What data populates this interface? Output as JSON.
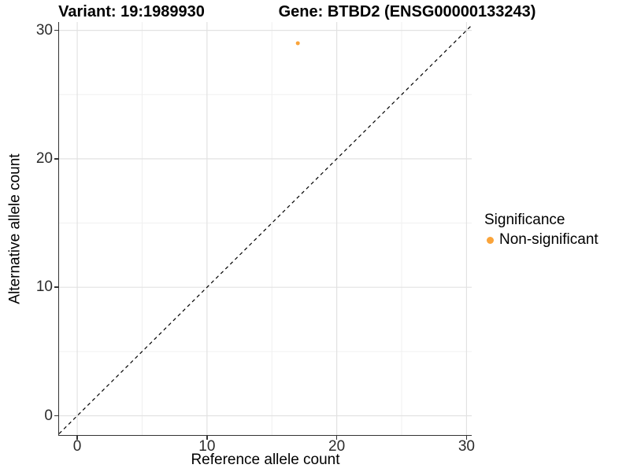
{
  "titles": {
    "variant": "Variant: 19:1989930",
    "gene": "Gene: BTBD2 (ENSG00000133243)"
  },
  "chart_data": {
    "type": "scatter",
    "title_left": "Variant: 19:1989930",
    "title_right": "Gene: BTBD2 (ENSG00000133243)",
    "xlabel": "Reference allele count",
    "ylabel": "Alternative allele count",
    "xlim": [
      -1.4,
      30.4
    ],
    "ylim": [
      -1.5,
      30.65
    ],
    "xticks": [
      0,
      10,
      20,
      30
    ],
    "yticks": [
      0,
      10,
      20,
      30
    ],
    "minor_xticks": [
      5,
      15,
      25
    ],
    "minor_yticks": [
      5,
      15,
      25
    ],
    "grid": "major+minor on white background",
    "reference_line": {
      "type": "abline",
      "slope": 1,
      "intercept": 0,
      "style": "dashed",
      "color": "#000000"
    },
    "series": [
      {
        "name": "Non-significant",
        "color": "#FAA43A",
        "points": [
          {
            "x": 17,
            "y": 29
          }
        ]
      }
    ],
    "legend": {
      "title": "Significance",
      "position": "right",
      "items": [
        {
          "label": "Non-significant",
          "color": "#FAA43A"
        }
      ]
    }
  },
  "colors": {
    "point_orange": "#FAA43A",
    "axis_line": "#333333",
    "grid_major": "#e2e2e2",
    "grid_minor": "#f0f0f0"
  }
}
